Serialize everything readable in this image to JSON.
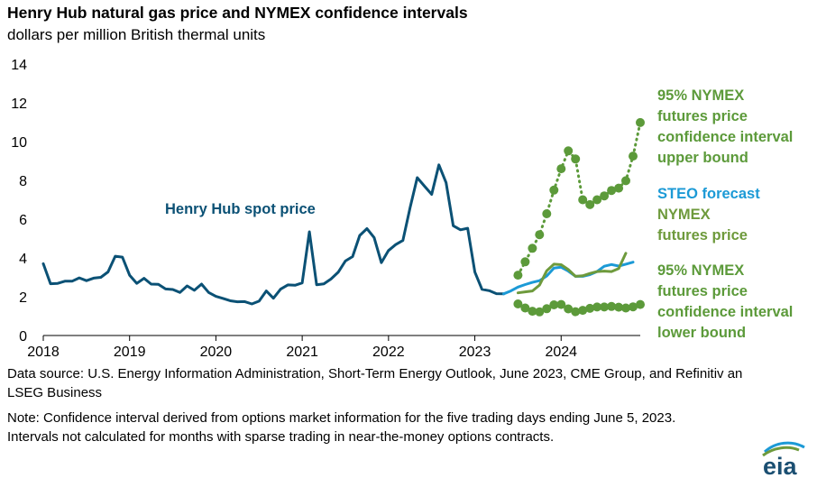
{
  "header": {
    "title": "Henry Hub natural gas price and NYMEX confidence intervals",
    "subtitle": "dollars per million British thermal units"
  },
  "footer": {
    "source": "Data source: U.S. Energy Information Administration, Short-Term Energy Outlook, June 2023, CME Group, and Refinitiv an LSEG Business",
    "note": "Note: Confidence interval derived from options market information for the five trading days ending June 5, 2023. Intervals not calculated for months with sparse trading in near-the-money options contracts."
  },
  "logo": {
    "text": "eia"
  },
  "colors": {
    "spot": "#0b5175",
    "steo": "#1c9ad6",
    "futures": "#6e9a3c",
    "bounds": "#5c9a3a"
  },
  "annotations": {
    "spot": "Henry Hub spot price",
    "upper": [
      "95% NYMEX",
      "futures price",
      "confidence interval",
      "upper bound"
    ],
    "steo": "STEO forecast",
    "futures": [
      "NYMEX",
      "futures price"
    ],
    "lower": [
      "95% NYMEX",
      "futures price",
      "confidence interval",
      "lower bound"
    ]
  },
  "chart_data": {
    "type": "line",
    "title": "Henry Hub natural gas price and NYMEX confidence intervals",
    "ylabel": "dollars per million British thermal units",
    "ylim": [
      0,
      14
    ],
    "yticks": [
      0,
      2,
      4,
      6,
      8,
      10,
      12,
      14
    ],
    "xlim": [
      "2018-01",
      "2024-12"
    ],
    "xticks": [
      "2018",
      "2019",
      "2020",
      "2021",
      "2022",
      "2023",
      "2024"
    ],
    "grid": false,
    "legend": "none (direct labels)",
    "series": [
      {
        "name": "Henry Hub spot price",
        "x_start": "2018-01",
        "values": [
          3.7,
          2.67,
          2.69,
          2.8,
          2.8,
          2.97,
          2.83,
          2.96,
          3.0,
          3.28,
          4.09,
          4.04,
          3.11,
          2.69,
          2.95,
          2.65,
          2.64,
          2.4,
          2.37,
          2.22,
          2.56,
          2.33,
          2.65,
          2.22,
          2.02,
          1.91,
          1.79,
          1.74,
          1.75,
          1.63,
          1.77,
          2.3,
          1.92,
          2.39,
          2.61,
          2.59,
          2.71,
          5.35,
          2.62,
          2.66,
          2.91,
          3.26,
          3.84,
          4.07,
          5.16,
          5.51,
          5.05,
          3.76,
          4.38,
          4.69,
          4.9,
          6.6,
          8.14,
          7.7,
          7.28,
          8.8,
          7.88,
          5.66,
          5.45,
          5.53,
          3.27,
          2.38,
          2.31,
          2.16,
          2.15
        ]
      },
      {
        "name": "STEO forecast",
        "x_start": "2023-05",
        "values": [
          2.15,
          2.3,
          2.5,
          2.63,
          2.74,
          2.83,
          3.07,
          3.48,
          3.52,
          3.32,
          3.05,
          3.05,
          3.14,
          3.3,
          3.57,
          3.66,
          3.58,
          3.68,
          3.78
        ]
      },
      {
        "name": "NYMEX futures price",
        "x_start": "2023-07",
        "values": [
          2.2,
          2.25,
          2.3,
          2.6,
          3.34,
          3.68,
          3.65,
          3.4,
          3.05,
          3.08,
          3.2,
          3.3,
          3.32,
          3.3,
          3.45,
          4.24
        ]
      },
      {
        "name": "95% NYMEX futures price confidence interval upper bound",
        "x_start": "2023-07",
        "values": [
          3.11,
          3.8,
          4.5,
          5.2,
          6.28,
          7.5,
          8.6,
          9.52,
          9.1,
          7.0,
          6.75,
          7.0,
          7.2,
          7.48,
          7.6,
          7.98,
          9.25,
          10.98
        ]
      },
      {
        "name": "95% NYMEX futures price confidence interval lower bound",
        "x_start": "2023-07",
        "values": [
          1.63,
          1.42,
          1.25,
          1.22,
          1.38,
          1.58,
          1.6,
          1.37,
          1.23,
          1.3,
          1.4,
          1.47,
          1.47,
          1.5,
          1.46,
          1.42,
          1.48,
          1.6
        ]
      }
    ]
  }
}
